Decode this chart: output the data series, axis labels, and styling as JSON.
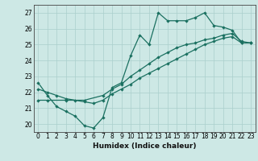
{
  "xlabel": "Humidex (Indice chaleur)",
  "bg_color": "#cde8e5",
  "grid_color": "#aacfcc",
  "line_color": "#1a7060",
  "xlim": [
    -0.5,
    23.5
  ],
  "ylim": [
    19.5,
    27.5
  ],
  "xticks": [
    0,
    1,
    2,
    3,
    4,
    5,
    6,
    7,
    8,
    9,
    10,
    11,
    12,
    13,
    14,
    15,
    16,
    17,
    18,
    19,
    20,
    21,
    22,
    23
  ],
  "yticks": [
    20,
    21,
    22,
    23,
    24,
    25,
    26,
    27
  ],
  "line1_x": [
    0,
    1,
    2,
    3,
    4,
    5,
    6,
    7,
    8,
    9,
    10,
    11,
    12,
    13,
    14,
    15,
    16,
    17,
    18,
    19,
    20,
    21,
    22,
    23
  ],
  "line1_y": [
    22.6,
    21.8,
    21.1,
    20.8,
    20.5,
    19.9,
    19.75,
    20.4,
    22.3,
    22.6,
    24.3,
    25.6,
    25.0,
    27.0,
    26.5,
    26.5,
    26.5,
    26.7,
    27.0,
    26.2,
    26.1,
    25.9,
    25.1,
    25.1
  ],
  "line2_x": [
    0,
    1,
    3,
    5,
    7,
    8,
    9,
    10,
    11,
    12,
    13,
    14,
    15,
    16,
    17,
    18,
    19,
    20,
    21,
    22,
    23
  ],
  "line2_y": [
    21.5,
    21.5,
    21.5,
    21.5,
    21.8,
    22.2,
    22.5,
    23.0,
    23.4,
    23.8,
    24.2,
    24.5,
    24.8,
    25.0,
    25.1,
    25.3,
    25.4,
    25.6,
    25.7,
    25.2,
    25.1
  ],
  "line3_x": [
    0,
    1,
    2,
    3,
    4,
    5,
    6,
    7,
    8,
    9,
    10,
    11,
    12,
    13,
    14,
    15,
    16,
    17,
    18,
    19,
    20,
    21,
    22,
    23
  ],
  "line3_y": [
    22.2,
    22.0,
    21.8,
    21.6,
    21.5,
    21.4,
    21.3,
    21.5,
    21.9,
    22.2,
    22.5,
    22.9,
    23.2,
    23.5,
    23.8,
    24.1,
    24.4,
    24.7,
    25.0,
    25.2,
    25.4,
    25.5,
    25.1,
    25.1
  ]
}
